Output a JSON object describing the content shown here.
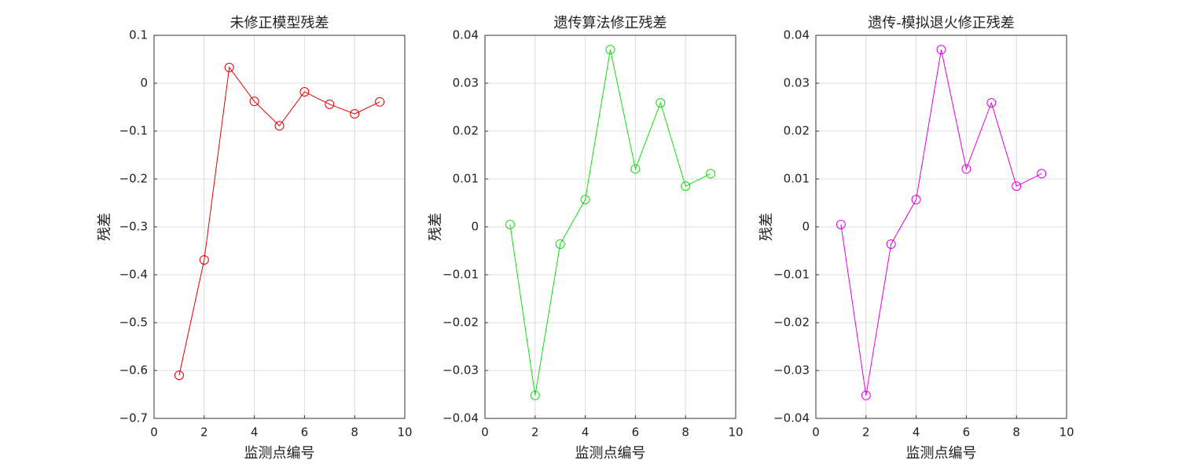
{
  "chart_data": [
    {
      "type": "line",
      "title": "未修正模型残差",
      "xlabel": "监测点编号",
      "ylabel": "残差",
      "x": [
        1,
        2,
        3,
        4,
        5,
        6,
        7,
        8,
        9
      ],
      "values": [
        -0.61,
        -0.369,
        0.033,
        -0.038,
        -0.089,
        -0.018,
        -0.044,
        -0.064,
        -0.039
      ],
      "color": "#e00000",
      "marker": "circle",
      "xlim": [
        0,
        10
      ],
      "xticks": [
        0,
        2,
        4,
        6,
        8,
        10
      ],
      "ylim": [
        -0.7,
        0.1
      ],
      "yticks": [
        {
          "value": -0.7,
          "label": "−0.7"
        },
        {
          "value": -0.6,
          "label": "−0.6"
        },
        {
          "value": -0.5,
          "label": "−0.5"
        },
        {
          "value": -0.4,
          "label": "−0.4"
        },
        {
          "value": -0.3,
          "label": "−0.3"
        },
        {
          "value": -0.2,
          "label": "−0.2"
        },
        {
          "value": -0.1,
          "label": "−0.1"
        },
        0,
        0.1
      ],
      "grid": true
    },
    {
      "type": "line",
      "title": "遗传算法修正残差",
      "xlabel": "监测点编号",
      "ylabel": "残差",
      "x": [
        1,
        2,
        3,
        4,
        5,
        6,
        7,
        8,
        9
      ],
      "values": [
        0.0005,
        -0.0352,
        -0.0036,
        0.0057,
        0.037,
        0.0121,
        0.0259,
        0.0085,
        0.0111
      ],
      "color": "#11dd11",
      "marker": "circle",
      "xlim": [
        0,
        10
      ],
      "xticks": [
        0,
        2,
        4,
        6,
        8,
        10
      ],
      "ylim": [
        -0.04,
        0.04
      ],
      "yticks": [
        {
          "value": -0.04,
          "label": "−0.04"
        },
        {
          "value": -0.03,
          "label": "−0.03"
        },
        {
          "value": -0.02,
          "label": "−0.02"
        },
        {
          "value": -0.01,
          "label": "−0.01"
        },
        0,
        0.01,
        0.02,
        0.03,
        0.04
      ],
      "grid": true
    },
    {
      "type": "line",
      "title": "遗传-模拟退火修正残差",
      "xlabel": "监测点编号",
      "ylabel": "残差",
      "x": [
        1,
        2,
        3,
        4,
        5,
        6,
        7,
        8,
        9
      ],
      "values": [
        0.0005,
        -0.0352,
        -0.0036,
        0.0057,
        0.037,
        0.0121,
        0.0259,
        0.0085,
        0.0111
      ],
      "color": "#e000e0",
      "marker": "circle",
      "xlim": [
        0,
        10
      ],
      "xticks": [
        0,
        2,
        4,
        6,
        8,
        10
      ],
      "ylim": [
        -0.04,
        0.04
      ],
      "yticks": [
        {
          "value": -0.04,
          "label": "−0.04"
        },
        {
          "value": -0.03,
          "label": "−0.03"
        },
        {
          "value": -0.02,
          "label": "−0.02"
        },
        {
          "value": -0.01,
          "label": "−0.01"
        },
        0,
        0.01,
        0.02,
        0.03,
        0.04
      ],
      "grid": true
    }
  ]
}
